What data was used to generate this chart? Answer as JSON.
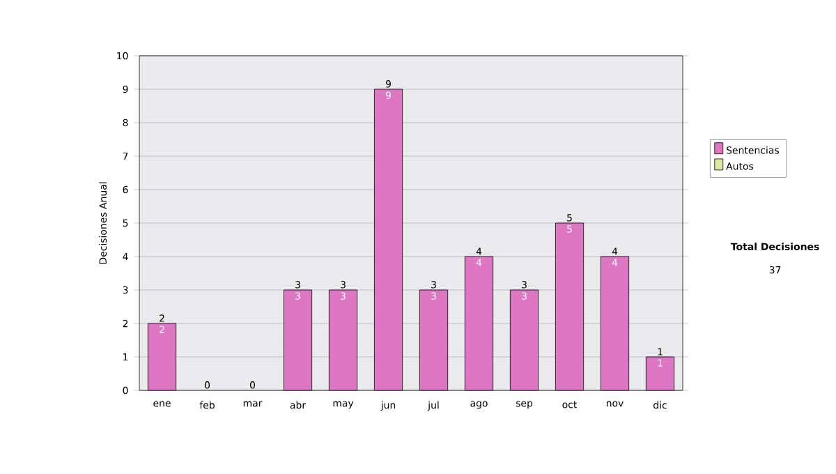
{
  "chart_data": {
    "type": "bar",
    "stacked": true,
    "ylabel": "Decisiones Anual",
    "categories": [
      "ene",
      "feb",
      "mar",
      "abr",
      "may",
      "jun",
      "jul",
      "ago",
      "sep",
      "oct",
      "nov",
      "dic"
    ],
    "series": [
      {
        "name": "Sentencias",
        "color": "#dd77c4",
        "values": [
          2,
          0,
          0,
          3,
          3,
          9,
          3,
          4,
          3,
          5,
          4,
          1
        ],
        "value_labels": [
          "2",
          null,
          null,
          "3",
          "3",
          "9",
          "3",
          "4",
          "3",
          "5",
          "4",
          "1"
        ]
      },
      {
        "name": "Autos",
        "color": "#e0e8a0",
        "values": [
          0,
          0,
          0,
          0,
          0,
          0,
          0,
          0,
          0,
          0,
          0,
          0
        ]
      }
    ],
    "totals": [
      "2",
      "0",
      "0",
      "3",
      "3",
      "9",
      "3",
      "4",
      "3",
      "5",
      "4",
      "1"
    ],
    "ylim": [
      0,
      10
    ],
    "yticks": [
      0,
      1,
      2,
      3,
      4,
      5,
      6,
      7,
      8,
      9,
      10
    ],
    "grid": "y",
    "legend": "right",
    "annotations": [
      "Total Decisiones",
      "37"
    ]
  }
}
